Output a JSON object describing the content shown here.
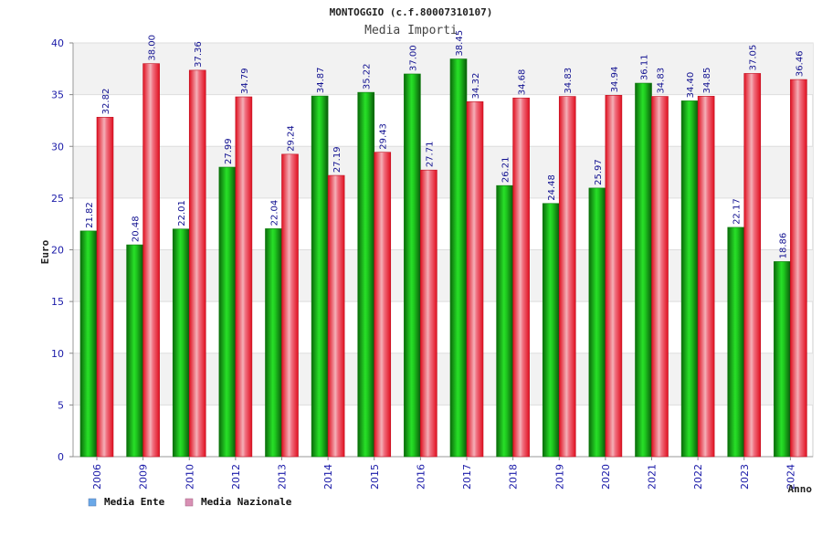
{
  "chart_data": {
    "type": "bar",
    "title": "MONTOGGIO (c.f.80007310107)",
    "subtitle": "Media Importi",
    "xlabel": "Anno",
    "ylabel": "Euro",
    "ylim": [
      0,
      40
    ],
    "yticks": [
      0,
      5,
      10,
      15,
      20,
      25,
      30,
      35,
      40
    ],
    "grid": true,
    "legend_position": "bottom-left",
    "categories": [
      "2006",
      "2009",
      "2010",
      "2012",
      "2013",
      "2014",
      "2015",
      "2016",
      "2017",
      "2018",
      "2019",
      "2020",
      "2021",
      "2022",
      "2023",
      "2024"
    ],
    "series": [
      {
        "name": "Media Ente",
        "color": "#1ec81e",
        "legend_color": "#6aa8e8",
        "values": [
          21.82,
          20.48,
          22.01,
          27.99,
          22.04,
          34.87,
          35.22,
          37.0,
          38.45,
          26.21,
          24.48,
          25.97,
          36.11,
          34.4,
          22.17,
          18.86
        ],
        "labels": [
          "21.82",
          "20.48",
          "22.01",
          "27.99",
          "22.04",
          "34.87",
          "35.22",
          "37.00",
          "38.45",
          "26.21",
          "24.48",
          "25.97",
          "36.11",
          "34.40",
          "22.17",
          "18.86"
        ]
      },
      {
        "name": "Media Nazionale",
        "color": "#e81e2e",
        "legend_color": "#d890b4",
        "values": [
          32.82,
          38.0,
          37.36,
          34.79,
          29.24,
          27.19,
          29.43,
          27.71,
          34.32,
          34.68,
          34.83,
          34.94,
          34.83,
          34.85,
          37.05,
          36.46
        ],
        "labels": [
          "32.82",
          "38.00",
          "37.36",
          "34.79",
          "29.24",
          "27.19",
          "29.43",
          "27.71",
          "34.32",
          "34.68",
          "34.83",
          "34.94",
          "34.83",
          "34.85",
          "37.05",
          "36.46"
        ]
      }
    ]
  }
}
